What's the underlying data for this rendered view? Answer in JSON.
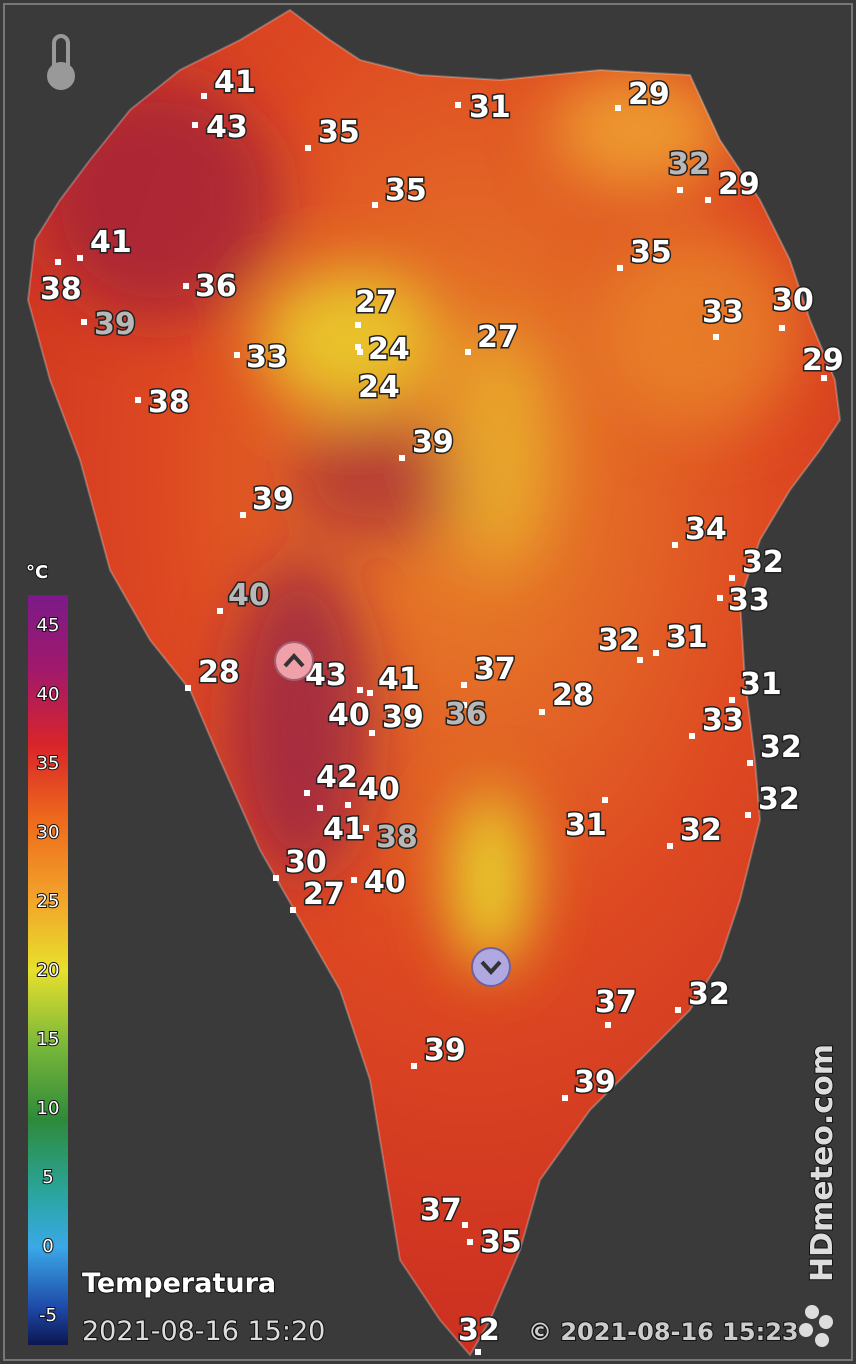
{
  "legend": {
    "unit": "°C",
    "ticks": [
      45,
      40,
      35,
      30,
      25,
      20,
      15,
      10,
      5,
      0,
      -5
    ]
  },
  "title": "Temperatura",
  "timestamp": "2021-08-16 15:20",
  "copyright": "© 2021-08-16 15:23",
  "brand": "HDmeteo.com",
  "stations": [
    41,
    43,
    35,
    31,
    29,
    32,
    29,
    35,
    41,
    38,
    36,
    39,
    35,
    27,
    24,
    24,
    27,
    33,
    33,
    30,
    29,
    38,
    39,
    39,
    34,
    32,
    33,
    40,
    32,
    31,
    28,
    43,
    41,
    37,
    40,
    39,
    36,
    28,
    31,
    33,
    32,
    32,
    42,
    40,
    41,
    38,
    31,
    32,
    30,
    27,
    40,
    37,
    32,
    39,
    39,
    37,
    35,
    32
  ]
}
